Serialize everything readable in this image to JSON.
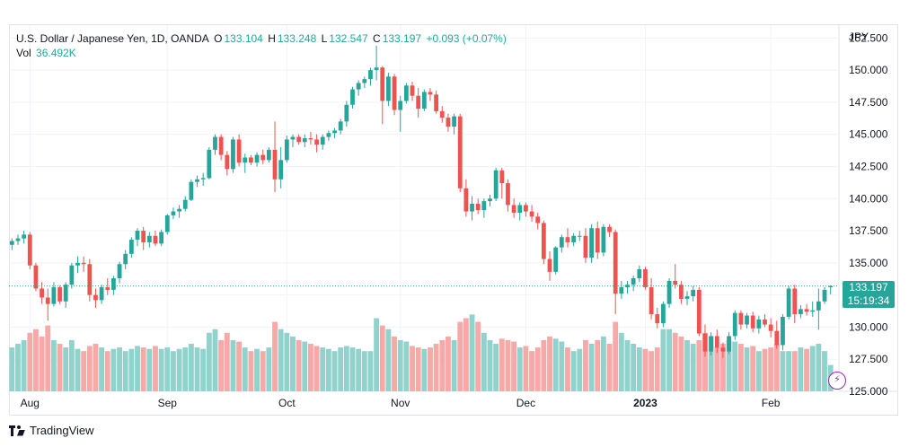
{
  "header": {
    "symbol": "U.S. Dollar / Japanese Yen, 1D, OANDA",
    "o_label": "O",
    "o_value": "133.104",
    "h_label": "H",
    "h_value": "133.248",
    "l_label": "L",
    "l_value": "132.547",
    "c_label": "C",
    "c_value": "133.197",
    "change": "+0.093 (+0.07%)",
    "vol_label": "Vol",
    "vol_value": "36.492K"
  },
  "last_price": {
    "value": "133.197",
    "countdown": "15:19:34"
  },
  "brand": {
    "name": "TradingView"
  },
  "colors": {
    "up": "#26a69a",
    "down": "#ef5350",
    "up_vol": "#92d2cc",
    "down_vol": "#f7a9a7",
    "grid": "#f0f3fa",
    "axis_text": "#131722"
  },
  "chart_data": {
    "type": "candlestick",
    "instrument": "U.S. Dollar / Japanese Yen",
    "timeframe": "1D",
    "y_axis": {
      "unit": "JPY",
      "range": [
        125.0,
        153.5
      ],
      "ticks": [
        "152.500",
        "150.000",
        "147.500",
        "145.000",
        "142.500",
        "140.000",
        "137.500",
        "135.000",
        "132.500",
        "130.000",
        "127.500",
        "125.000"
      ]
    },
    "x_axis": {
      "labels": [
        {
          "text": "Aug",
          "bar": 3,
          "bold": false
        },
        {
          "text": "Sep",
          "bar": 26,
          "bold": false
        },
        {
          "text": "Oct",
          "bar": 46,
          "bold": false
        },
        {
          "text": "Nov",
          "bar": 65,
          "bold": false
        },
        {
          "text": "Dec",
          "bar": 86,
          "bold": false
        },
        {
          "text": "2023",
          "bar": 106,
          "bold": true
        },
        {
          "text": "Feb",
          "bar": 127,
          "bold": false
        }
      ]
    },
    "grid": true,
    "volume_scale_max": 130,
    "candles": [
      [
        136.4,
        136.9,
        136.0,
        136.7,
        60
      ],
      [
        136.7,
        137.2,
        136.4,
        136.9,
        65
      ],
      [
        136.9,
        137.5,
        136.5,
        137.2,
        70
      ],
      [
        137.2,
        137.4,
        134.5,
        134.8,
        80
      ],
      [
        134.8,
        135.0,
        132.8,
        133.0,
        85
      ],
      [
        133.0,
        133.5,
        131.8,
        132.3,
        75
      ],
      [
        132.3,
        133.0,
        130.5,
        131.8,
        90
      ],
      [
        131.8,
        133.5,
        131.6,
        133.1,
        70
      ],
      [
        133.1,
        133.2,
        131.8,
        132.0,
        65
      ],
      [
        132.0,
        133.5,
        131.5,
        133.3,
        60
      ],
      [
        133.3,
        135.0,
        133.0,
        134.8,
        70
      ],
      [
        134.8,
        135.5,
        134.2,
        135.0,
        58
      ],
      [
        135.0,
        135.5,
        134.3,
        134.9,
        55
      ],
      [
        134.9,
        135.3,
        132.0,
        132.5,
        62
      ],
      [
        132.5,
        133.0,
        131.5,
        132.1,
        65
      ],
      [
        132.1,
        133.3,
        131.8,
        133.1,
        60
      ],
      [
        133.1,
        133.8,
        132.5,
        132.9,
        55
      ],
      [
        132.9,
        134.0,
        132.5,
        133.8,
        58
      ],
      [
        133.8,
        135.1,
        133.4,
        134.9,
        60
      ],
      [
        134.9,
        136.0,
        134.5,
        135.7,
        55
      ],
      [
        135.7,
        137.0,
        135.4,
        136.8,
        58
      ],
      [
        136.8,
        137.7,
        136.3,
        137.5,
        62
      ],
      [
        137.5,
        137.8,
        136.0,
        136.6,
        60
      ],
      [
        136.6,
        137.4,
        136.2,
        137.1,
        58
      ],
      [
        137.1,
        137.5,
        136.3,
        136.5,
        62
      ],
      [
        136.5,
        137.6,
        136.3,
        137.4,
        58
      ],
      [
        137.4,
        138.8,
        137.2,
        138.7,
        60
      ],
      [
        138.7,
        139.3,
        138.4,
        139.0,
        55
      ],
      [
        139.0,
        139.5,
        138.5,
        139.2,
        58
      ],
      [
        139.2,
        140.2,
        139.0,
        139.9,
        60
      ],
      [
        139.9,
        141.5,
        139.8,
        141.3,
        65
      ],
      [
        141.3,
        141.8,
        140.9,
        141.5,
        60
      ],
      [
        141.5,
        142.0,
        141.0,
        141.6,
        58
      ],
      [
        141.6,
        144.0,
        141.5,
        143.8,
        80
      ],
      [
        143.8,
        145.0,
        143.4,
        144.8,
        85
      ],
      [
        144.8,
        145.0,
        143.0,
        143.4,
        70
      ],
      [
        143.4,
        143.7,
        141.8,
        142.3,
        80
      ],
      [
        142.3,
        144.8,
        142.0,
        144.6,
        70
      ],
      [
        144.6,
        145.0,
        142.5,
        142.8,
        68
      ],
      [
        142.8,
        143.5,
        142.0,
        143.2,
        60
      ],
      [
        143.2,
        143.4,
        142.6,
        142.8,
        55
      ],
      [
        142.8,
        143.6,
        142.5,
        143.4,
        58
      ],
      [
        143.4,
        143.8,
        142.7,
        143.0,
        55
      ],
      [
        143.0,
        144.0,
        142.8,
        143.8,
        60
      ],
      [
        143.8,
        146.0,
        140.5,
        141.5,
        95
      ],
      [
        141.5,
        144.0,
        140.8,
        143.0,
        85
      ],
      [
        143.0,
        144.9,
        142.8,
        144.6,
        80
      ],
      [
        144.6,
        145.0,
        144.0,
        144.8,
        75
      ],
      [
        144.8,
        145.0,
        144.2,
        144.4,
        70
      ],
      [
        144.4,
        145.0,
        144.0,
        144.7,
        68
      ],
      [
        144.7,
        145.2,
        144.2,
        144.6,
        65
      ],
      [
        144.6,
        145.0,
        143.6,
        144.2,
        62
      ],
      [
        144.2,
        145.0,
        143.8,
        144.8,
        60
      ],
      [
        144.8,
        145.3,
        144.5,
        145.1,
        58
      ],
      [
        145.1,
        145.5,
        144.7,
        145.3,
        55
      ],
      [
        145.3,
        146.2,
        145.0,
        146.0,
        60
      ],
      [
        146.0,
        147.6,
        145.6,
        147.3,
        62
      ],
      [
        147.3,
        148.7,
        147.0,
        148.5,
        60
      ],
      [
        148.5,
        149.2,
        148.0,
        149.0,
        58
      ],
      [
        149.0,
        149.5,
        148.6,
        149.3,
        55
      ],
      [
        149.3,
        150.2,
        148.8,
        150.0,
        55
      ],
      [
        150.0,
        151.9,
        149.2,
        150.2,
        100
      ],
      [
        150.2,
        150.3,
        145.8,
        147.6,
        90
      ],
      [
        147.6,
        149.8,
        147.2,
        149.5,
        85
      ],
      [
        149.5,
        149.7,
        146.5,
        146.9,
        75
      ],
      [
        146.9,
        148.0,
        145.2,
        147.6,
        70
      ],
      [
        147.6,
        149.0,
        147.4,
        148.8,
        68
      ],
      [
        148.8,
        149.1,
        147.6,
        148.0,
        62
      ],
      [
        148.0,
        148.6,
        146.3,
        147.0,
        60
      ],
      [
        147.0,
        148.5,
        146.8,
        148.3,
        58
      ],
      [
        148.3,
        148.6,
        147.6,
        148.1,
        60
      ],
      [
        148.1,
        148.4,
        146.6,
        146.8,
        65
      ],
      [
        146.8,
        147.2,
        145.9,
        146.3,
        70
      ],
      [
        146.3,
        146.6,
        145.2,
        145.6,
        75
      ],
      [
        145.6,
        146.6,
        145.0,
        146.4,
        70
      ],
      [
        146.4,
        146.6,
        140.5,
        140.8,
        95
      ],
      [
        140.8,
        141.5,
        138.6,
        139.0,
        100
      ],
      [
        139.0,
        140.2,
        138.3,
        139.6,
        105
      ],
      [
        139.6,
        140.0,
        138.8,
        139.1,
        95
      ],
      [
        139.1,
        140.0,
        138.5,
        139.8,
        80
      ],
      [
        139.8,
        140.3,
        139.4,
        140.0,
        70
      ],
      [
        140.0,
        142.4,
        139.8,
        142.2,
        65
      ],
      [
        142.2,
        142.4,
        140.0,
        141.2,
        72
      ],
      [
        141.2,
        141.5,
        139.0,
        139.5,
        70
      ],
      [
        139.5,
        140.0,
        138.5,
        138.9,
        68
      ],
      [
        138.9,
        139.7,
        138.3,
        139.5,
        60
      ],
      [
        139.5,
        139.7,
        138.6,
        139.0,
        62
      ],
      [
        139.0,
        139.5,
        138.2,
        138.6,
        55
      ],
      [
        138.6,
        138.9,
        137.6,
        138.1,
        60
      ],
      [
        138.1,
        138.3,
        134.9,
        135.3,
        70
      ],
      [
        135.3,
        135.9,
        133.6,
        134.3,
        75
      ],
      [
        134.3,
        136.3,
        134.1,
        136.2,
        72
      ],
      [
        136.2,
        137.2,
        135.8,
        137.0,
        68
      ],
      [
        137.0,
        137.7,
        136.2,
        136.6,
        60
      ],
      [
        136.6,
        137.3,
        136.3,
        137.1,
        55
      ],
      [
        137.1,
        137.5,
        136.7,
        137.1,
        58
      ],
      [
        137.1,
        137.7,
        135.0,
        135.4,
        70
      ],
      [
        135.4,
        138.0,
        135.0,
        137.7,
        65
      ],
      [
        137.7,
        138.2,
        135.3,
        135.8,
        70
      ],
      [
        135.8,
        138.0,
        135.5,
        137.8,
        75
      ],
      [
        137.8,
        138.0,
        137.0,
        137.4,
        65
      ],
      [
        137.4,
        137.6,
        131.0,
        132.6,
        95
      ],
      [
        132.6,
        133.6,
        132.2,
        133.1,
        80
      ],
      [
        133.1,
        133.6,
        132.6,
        133.3,
        70
      ],
      [
        133.3,
        134.0,
        132.8,
        133.8,
        65
      ],
      [
        133.8,
        134.8,
        133.5,
        134.5,
        60
      ],
      [
        134.5,
        134.7,
        132.9,
        133.1,
        58
      ],
      [
        133.1,
        133.8,
        130.6,
        131.0,
        55
      ],
      [
        131.0,
        131.5,
        129.9,
        130.3,
        60
      ],
      [
        130.3,
        132.0,
        130.0,
        131.8,
        85
      ],
      [
        131.8,
        133.8,
        131.5,
        133.6,
        85
      ],
      [
        133.6,
        134.9,
        133.0,
        133.3,
        80
      ],
      [
        133.3,
        133.6,
        131.8,
        132.2,
        75
      ],
      [
        132.2,
        132.8,
        131.7,
        132.4,
        70
      ],
      [
        132.4,
        133.2,
        132.0,
        132.9,
        65
      ],
      [
        132.9,
        133.1,
        129.3,
        129.5,
        70
      ],
      [
        129.5,
        130.2,
        127.7,
        128.1,
        80
      ],
      [
        128.1,
        129.6,
        127.8,
        129.3,
        75
      ],
      [
        129.3,
        129.8,
        128.0,
        128.4,
        60
      ],
      [
        128.4,
        128.8,
        127.6,
        128.1,
        65
      ],
      [
        128.1,
        129.6,
        127.9,
        129.3,
        70
      ],
      [
        129.3,
        131.3,
        129.0,
        131.1,
        68
      ],
      [
        131.1,
        131.3,
        129.8,
        130.2,
        65
      ],
      [
        130.2,
        131.1,
        129.9,
        130.9,
        60
      ],
      [
        130.9,
        131.2,
        129.6,
        129.9,
        62
      ],
      [
        129.9,
        130.9,
        129.5,
        130.6,
        55
      ],
      [
        130.6,
        131.0,
        130.0,
        130.2,
        58
      ],
      [
        130.2,
        130.7,
        129.2,
        129.7,
        60
      ],
      [
        129.7,
        130.5,
        128.3,
        128.6,
        65
      ],
      [
        128.6,
        131.0,
        128.2,
        130.8,
        55
      ],
      [
        130.8,
        133.2,
        130.6,
        133.0,
        55
      ],
      [
        133.0,
        133.3,
        130.3,
        131.0,
        55
      ],
      [
        131.0,
        131.7,
        130.7,
        131.4,
        60
      ],
      [
        131.4,
        131.8,
        130.9,
        131.2,
        58
      ],
      [
        131.2,
        132.0,
        130.8,
        131.3,
        62
      ],
      [
        131.3,
        133.0,
        129.8,
        132.0,
        65
      ],
      [
        132.0,
        133.1,
        131.8,
        132.9,
        55
      ],
      [
        133.104,
        133.248,
        132.547,
        133.197,
        36
      ]
    ]
  }
}
